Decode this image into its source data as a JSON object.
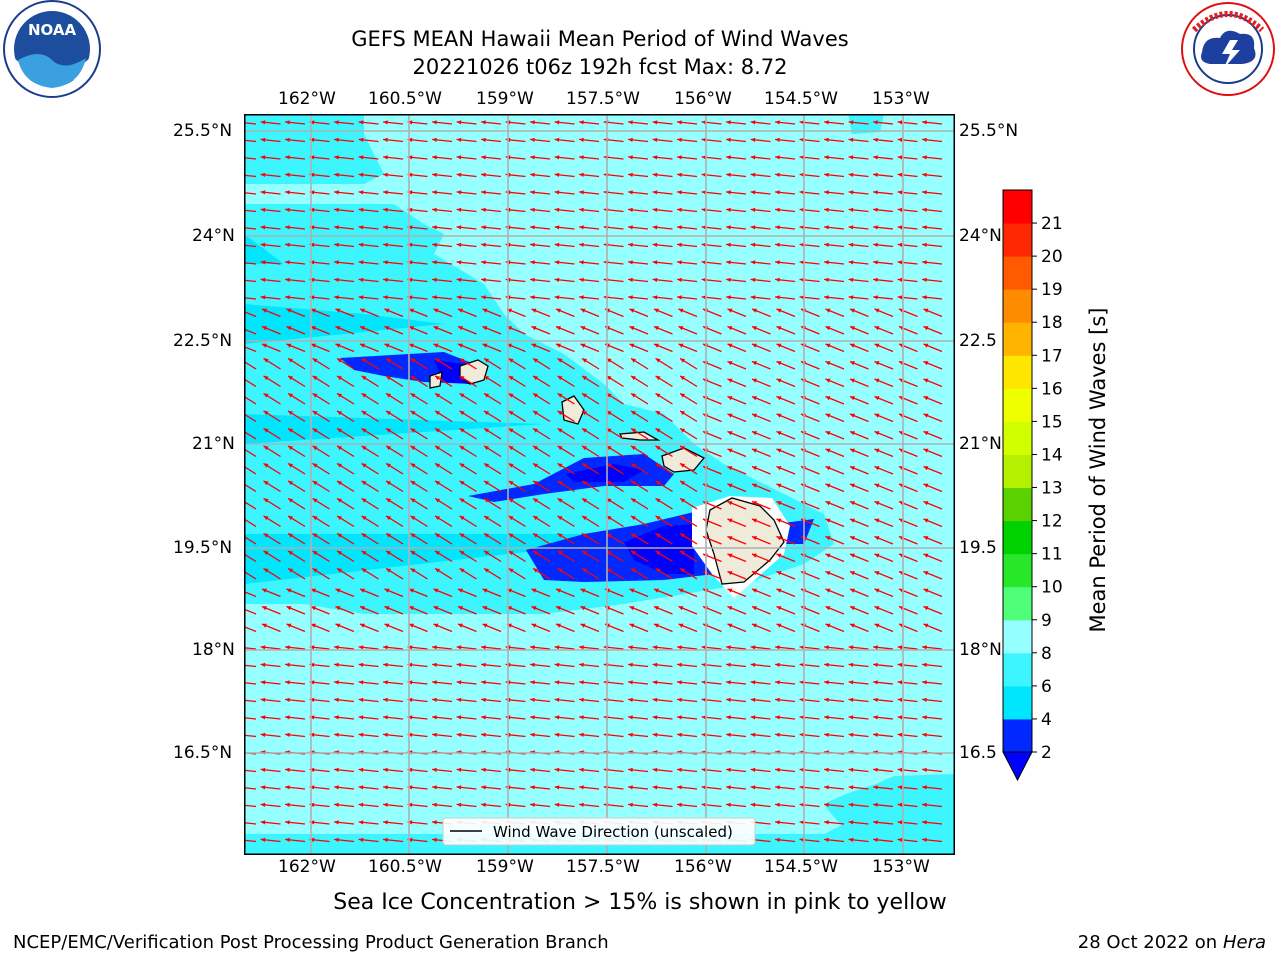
{
  "header": {
    "title_line1": "GEFS MEAN Hawaii Mean Period of Wind Waves",
    "title_line2": "20221026 t06z 192h fcst   Max: 8.72"
  },
  "logos": {
    "noaa_text": "NOAA",
    "noaa_ring_text": "NATIONAL OCEANIC AND ATMOSPHERIC ADMINISTRATION · U.S. DEPARTMENT OF COMMERCE",
    "nws_ring_text": "NATIONAL WEATHER SERVICE"
  },
  "map": {
    "lon_ticks": [
      "162°W",
      "160.5°W",
      "159°W",
      "157.5°W",
      "156°W",
      "154.5°W",
      "153°W"
    ],
    "lat_ticks": [
      "25.5°N",
      "24°N",
      "22.5°N",
      "21°N",
      "19.5°N",
      "18°N",
      "16.5°N"
    ],
    "lat_ticks_right": [
      "25.5°N",
      "24°N",
      "22.5",
      "21°N",
      "19.5",
      "18°N",
      "16.5"
    ],
    "legend_label": "Wind Wave Direction (unscaled)",
    "arrow_color": "#ff0000",
    "land_color": "#eeebdb"
  },
  "colorbar": {
    "label": "Mean Period of Wind Waves [s]",
    "tick_labels": [
      "2",
      "4",
      "6",
      "8",
      "9",
      "10",
      "11",
      "12",
      "13",
      "14",
      "15",
      "16",
      "17",
      "18",
      "19",
      "20",
      "21"
    ],
    "colors": [
      "#0028ff",
      "#00e6ff",
      "#3cf5ff",
      "#96ffff",
      "#50ff78",
      "#28e628",
      "#00d200",
      "#5ad200",
      "#b4f000",
      "#d2ff00",
      "#f0ff00",
      "#ffe600",
      "#ffb400",
      "#ff8c00",
      "#ff5a00",
      "#ff2800",
      "#ff0000"
    ],
    "under_color": "#0000ff"
  },
  "footer": {
    "sea_ice_note": "Sea Ice Concentration > 15% is shown in pink to yellow",
    "branch": "NCEP/EMC/Verification Post Processing Product Generation Branch",
    "date": "28 Oct 2022 on ",
    "host": "Hera"
  }
}
